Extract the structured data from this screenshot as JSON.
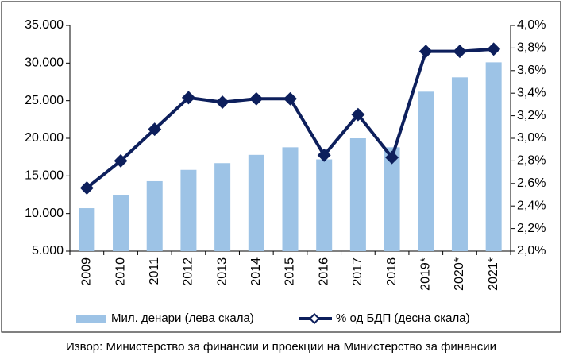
{
  "chart_data": {
    "type": "bar-line",
    "categories": [
      "2009",
      "2010",
      "2011",
      "2012",
      "2013",
      "2014",
      "2015",
      "2016",
      "2017",
      "2018",
      "2019*",
      "2020*",
      "2021*"
    ],
    "series": [
      {
        "name": "Мил. денари (лева скала)",
        "type": "bar",
        "axis": "y",
        "color": "#9dc3e6",
        "values": [
          10700,
          12400,
          14300,
          15800,
          16700,
          17800,
          18800,
          17200,
          20000,
          18800,
          26200,
          28100,
          30100
        ]
      },
      {
        "name": "% од БДП (десна скала)",
        "type": "line",
        "axis": "y2",
        "color": "#0d1f5c",
        "values": [
          2.56,
          2.8,
          3.08,
          3.36,
          3.32,
          3.35,
          3.35,
          2.85,
          3.21,
          2.83,
          3.77,
          3.77,
          3.79
        ]
      }
    ],
    "ylim": [
      5000,
      35000
    ],
    "yticks": [
      {
        "value": 5000,
        "label": "5.000"
      },
      {
        "value": 10000,
        "label": "10.000"
      },
      {
        "value": 15000,
        "label": "15.000"
      },
      {
        "value": 20000,
        "label": "20.000"
      },
      {
        "value": 25000,
        "label": "25.000"
      },
      {
        "value": 30000,
        "label": "30.000"
      },
      {
        "value": 35000,
        "label": "35.000"
      }
    ],
    "y2lim": [
      2.0,
      4.0
    ],
    "y2ticks": [
      {
        "value": 2.0,
        "label": "2,0%"
      },
      {
        "value": 2.2,
        "label": "2,2%"
      },
      {
        "value": 2.4,
        "label": "2,4%"
      },
      {
        "value": 2.6,
        "label": "2,6%"
      },
      {
        "value": 2.8,
        "label": "2,8%"
      },
      {
        "value": 3.0,
        "label": "3,0%"
      },
      {
        "value": 3.2,
        "label": "3,2%"
      },
      {
        "value": 3.4,
        "label": "3,4%"
      },
      {
        "value": 3.6,
        "label": "3,6%"
      },
      {
        "value": 3.8,
        "label": "3,8%"
      },
      {
        "value": 4.0,
        "label": "4,0%"
      }
    ],
    "source": "Извор: Министерство за финансии и проекции на Министерство за финансии"
  }
}
